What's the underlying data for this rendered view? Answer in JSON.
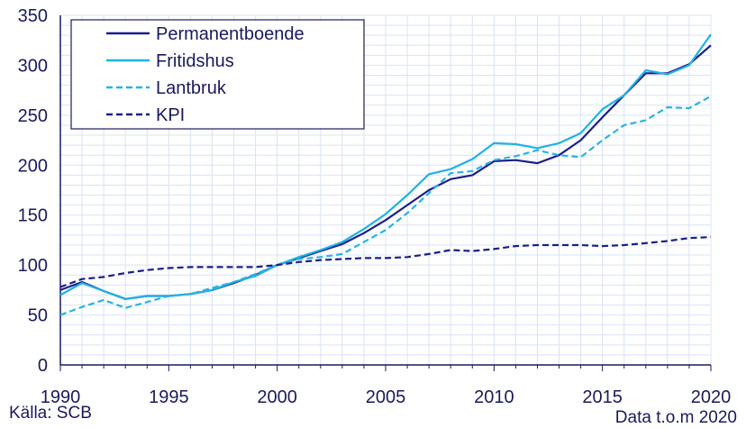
{
  "chart_data": {
    "type": "line",
    "x": [
      1990,
      1991,
      1992,
      1993,
      1994,
      1995,
      1996,
      1997,
      1998,
      1999,
      2000,
      2001,
      2002,
      2003,
      2004,
      2005,
      2006,
      2007,
      2008,
      2009,
      2010,
      2011,
      2012,
      2013,
      2014,
      2015,
      2016,
      2017,
      2018,
      2019,
      2020
    ],
    "series": [
      {
        "name": "Permanentboende",
        "color": "#1b1f8a",
        "dash": false,
        "values": [
          75,
          83,
          74,
          66,
          69,
          69,
          71,
          75,
          82,
          90,
          100,
          107,
          114,
          121,
          132,
          145,
          160,
          175,
          186,
          190,
          204,
          205,
          202,
          210,
          225,
          248,
          270,
          292,
          292,
          301,
          320
        ]
      },
      {
        "name": "Fritidshus",
        "color": "#1fb2e6",
        "dash": false,
        "values": [
          70,
          82,
          74,
          66,
          69,
          69,
          71,
          75,
          83,
          89,
          100,
          108,
          115,
          123,
          136,
          151,
          170,
          191,
          196,
          206,
          222,
          221,
          217,
          222,
          232,
          256,
          270,
          295,
          291,
          300,
          331
        ]
      },
      {
        "name": "Lantbruk",
        "color": "#2bb2e6",
        "dash": true,
        "values": [
          50,
          58,
          65,
          57,
          63,
          69,
          71,
          77,
          83,
          91,
          100,
          106,
          108,
          111,
          123,
          135,
          152,
          172,
          192,
          194,
          205,
          209,
          215,
          210,
          208,
          225,
          240,
          245,
          258,
          257,
          269
        ]
      },
      {
        "name": "KPI",
        "color": "#1b1f8a",
        "dash": true,
        "values": [
          78,
          86,
          88,
          92,
          95,
          97,
          98,
          98,
          98,
          98,
          100,
          103,
          105,
          106,
          107,
          107,
          108,
          111,
          115,
          114,
          116,
          119,
          120,
          120,
          120,
          119,
          120,
          122,
          124,
          127,
          128
        ]
      }
    ],
    "xlim": [
      1990,
      2020
    ],
    "ylim": [
      0,
      350
    ],
    "xticks": [
      1990,
      1995,
      2000,
      2005,
      2010,
      2015,
      2020
    ],
    "yticks": [
      0,
      50,
      100,
      150,
      200,
      250,
      300,
      350
    ],
    "grid": true,
    "legend_position": "top-left",
    "source": "Källa: SCB",
    "data_note": "Data t.o.m 2020"
  }
}
